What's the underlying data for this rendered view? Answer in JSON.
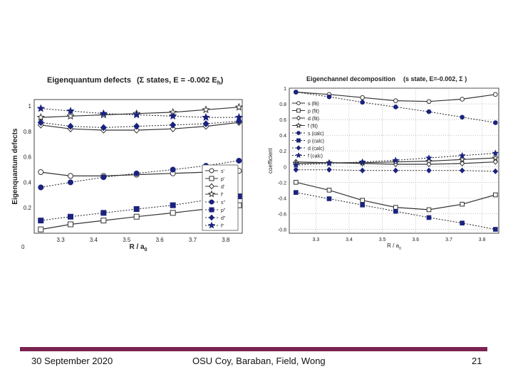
{
  "footer": {
    "date": "30 September 2020",
    "authors": "OSU Coy, Baraban, Field, Wong",
    "page": "21"
  },
  "colors": {
    "open_marker": "#333333",
    "filled_marker": "#1a237e",
    "footer_rule": "#7a2350"
  },
  "chart_data": [
    {
      "type": "line",
      "title": "Eigenquantum defects",
      "title_suffix": "(Σ states, E = -0.002 E",
      "title_sub": "h",
      "title_close": ")",
      "xlabel": "R / a",
      "xlabel_sub": "0",
      "ylabel": "Eigenquantum defects",
      "xlim": [
        3.22,
        3.85
      ],
      "ylim": [
        0,
        1.05
      ],
      "corner_label": "0",
      "x_ticks": [
        3.3,
        3.4,
        3.5,
        3.6,
        3.7,
        3.8
      ],
      "x_tick_labels": [
        "3.3",
        "3.4",
        "3.5",
        "3.6",
        "3.7",
        "3.8"
      ],
      "y_ticks": [
        0.2,
        0.4,
        0.6,
        0.8,
        1.0
      ],
      "y_tick_labels": [
        "0.2",
        "0.4",
        "0.6",
        "0.8",
        "1"
      ],
      "x": [
        3.24,
        3.33,
        3.43,
        3.53,
        3.64,
        3.74,
        3.84
      ],
      "series": [
        {
          "name": "s'",
          "style": "solid",
          "marker": "circle",
          "filled": false,
          "values": [
            0.48,
            0.45,
            0.45,
            0.46,
            0.47,
            0.48,
            0.49
          ]
        },
        {
          "name": "p'",
          "style": "solid",
          "marker": "square",
          "filled": false,
          "values": [
            0.03,
            0.07,
            0.1,
            0.13,
            0.16,
            0.19,
            0.22
          ]
        },
        {
          "name": "d'",
          "style": "solid",
          "marker": "diamond",
          "filled": false,
          "values": [
            0.85,
            0.82,
            0.81,
            0.81,
            0.82,
            0.84,
            0.87
          ]
        },
        {
          "name": "f'",
          "style": "solid",
          "marker": "star",
          "filled": false,
          "values": [
            0.91,
            0.92,
            0.93,
            0.94,
            0.95,
            0.97,
            0.99
          ]
        },
        {
          "name": "s\"",
          "style": "dotted",
          "marker": "circle",
          "filled": true,
          "values": [
            0.36,
            0.4,
            0.44,
            0.47,
            0.5,
            0.53,
            0.57
          ]
        },
        {
          "name": "p\"",
          "style": "dotted",
          "marker": "square",
          "filled": true,
          "values": [
            0.1,
            0.13,
            0.16,
            0.19,
            0.22,
            0.26,
            0.29
          ]
        },
        {
          "name": "d\"",
          "style": "dotted",
          "marker": "diamond",
          "filled": true,
          "values": [
            0.87,
            0.84,
            0.83,
            0.84,
            0.85,
            0.86,
            0.88
          ]
        },
        {
          "name": "f\"",
          "style": "dotted",
          "marker": "star",
          "filled": true,
          "values": [
            0.98,
            0.96,
            0.94,
            0.93,
            0.92,
            0.91,
            0.91
          ]
        }
      ],
      "legend": "right"
    },
    {
      "type": "line",
      "title": "Eigenchannel decomposition",
      "title_suffix": "(s state, E=-0.002, Σ )",
      "xlabel": "R / a",
      "xlabel_sub": "0",
      "ylabel": "coefficient",
      "xlim": [
        3.22,
        3.85
      ],
      "ylim": [
        -0.85,
        1.0
      ],
      "x_ticks": [
        3.3,
        3.4,
        3.5,
        3.6,
        3.7,
        3.8
      ],
      "x_tick_labels": [
        "3.3",
        "3.4",
        "3.5",
        "3.6",
        "3.7",
        "3.8"
      ],
      "y_ticks": [
        -0.8,
        -0.6,
        -0.4,
        -0.2,
        0,
        0.2,
        0.4,
        0.6,
        0.8,
        1
      ],
      "y_tick_labels": [
        "-0.8",
        "-0.6",
        "-0.4",
        "-0.2",
        "0",
        "0.2",
        "0.4",
        "0.6",
        "0.8",
        "1"
      ],
      "x": [
        3.24,
        3.34,
        3.44,
        3.54,
        3.64,
        3.74,
        3.84
      ],
      "series": [
        {
          "name": "s (fit)",
          "style": "solid",
          "marker": "circle",
          "filled": false,
          "values": [
            0.95,
            0.92,
            0.88,
            0.84,
            0.83,
            0.86,
            0.92
          ]
        },
        {
          "name": "p (fit)",
          "style": "solid",
          "marker": "square",
          "filled": false,
          "values": [
            -0.2,
            -0.3,
            -0.43,
            -0.52,
            -0.55,
            -0.48,
            -0.36
          ]
        },
        {
          "name": "d (fit)",
          "style": "solid",
          "marker": "diamond",
          "filled": false,
          "values": [
            0.06,
            0.05,
            0.04,
            0.03,
            0.03,
            0.04,
            0.06
          ]
        },
        {
          "name": "f (fit)",
          "style": "solid",
          "marker": "star",
          "filled": false,
          "values": [
            0.04,
            0.05,
            0.05,
            0.06,
            0.07,
            0.09,
            0.11
          ]
        },
        {
          "name": "s (calc)",
          "style": "dotted",
          "marker": "circle",
          "filled": true,
          "values": [
            0.95,
            0.89,
            0.82,
            0.76,
            0.7,
            0.63,
            0.56
          ]
        },
        {
          "name": "p (calc)",
          "style": "dotted",
          "marker": "square",
          "filled": true,
          "values": [
            -0.33,
            -0.41,
            -0.49,
            -0.57,
            -0.65,
            -0.72,
            -0.8
          ]
        },
        {
          "name": "d (calc)",
          "style": "dotted",
          "marker": "diamond",
          "filled": true,
          "values": [
            -0.04,
            -0.04,
            -0.05,
            -0.05,
            -0.05,
            -0.05,
            -0.06
          ]
        },
        {
          "name": "f (calc)",
          "style": "dotted",
          "marker": "star",
          "filled": true,
          "values": [
            0.02,
            0.04,
            0.06,
            0.08,
            0.11,
            0.14,
            0.17
          ]
        }
      ],
      "legend": "top-left"
    }
  ]
}
